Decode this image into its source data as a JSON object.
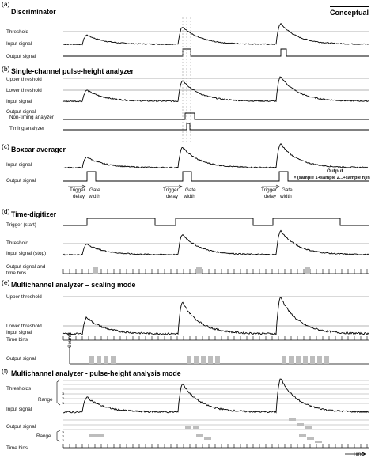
{
  "corner_tag": "Conceptual",
  "panels": {
    "a": {
      "letter": "(a)",
      "title": "Discriminator",
      "labels": {
        "threshold": "Threshold",
        "input": "Input signal",
        "output": "Output signal"
      }
    },
    "b": {
      "letter": "(b)",
      "title": "Single-channel pulse-height analyzer",
      "labels": {
        "upper": "Upper threshold",
        "lower": "Lower threshold",
        "input": "Input signal",
        "output": "Output signal",
        "nontiming": "Non-timing analyzer",
        "timing": "Timing analyzer"
      }
    },
    "c": {
      "letter": "(c)",
      "title": "Boxcar averager",
      "labels": {
        "input": "Input signal",
        "output": "Output signal",
        "trigger": "Trigger",
        "delay": "delay",
        "gate": "Gate",
        "width": "width",
        "output_word": "Output",
        "formula": "= (sample 1+sample 2...+sample n)/n"
      }
    },
    "d": {
      "letter": "(d)",
      "title": "Time-digitizer",
      "labels": {
        "trigger": "Trigger (start)",
        "threshold": "Threshold",
        "input": "Input signal (stop)",
        "output": "Output signal and",
        "output2": "time bins"
      }
    },
    "e": {
      "letter": "(e)",
      "title": "Multichannel analyzer – scaling mode",
      "labels": {
        "upper": "Upper threshold",
        "lower": "Lower threshold",
        "input": "Input signal",
        "bins": "Time bins",
        "counts": "Counts",
        "output": "Output signal"
      }
    },
    "f": {
      "letter": "(f)",
      "title": "Multichannel analyzer - pulse-height analysis mode",
      "labels": {
        "thresholds": "Thresholds",
        "range": "Range",
        "input": "Input signal",
        "output": "Output signal",
        "range2": "Range",
        "bins": "Time bins",
        "time": "Time"
      },
      "range_numbers": [
        "3",
        "2",
        "1"
      ]
    }
  },
  "colors": {
    "line": "#000000",
    "threshold": "#9a9a9a",
    "bar": "#bdbdbd"
  }
}
